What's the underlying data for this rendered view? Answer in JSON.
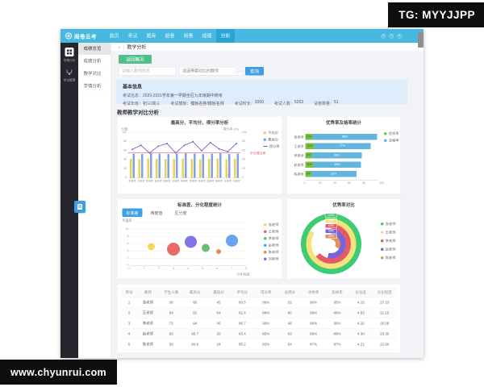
{
  "watermarks": {
    "top_right": "TG: MYYJJPP",
    "bottom_left": "www.chyunrui.com"
  },
  "app": {
    "brand": "阅卷云考",
    "topnav": [
      "首页",
      "考试",
      "题库",
      "组卷",
      "阅卷",
      "成绩",
      "分析"
    ],
    "topnav_active": "分析",
    "sidebar_items": [
      {
        "icon": "grid-icon",
        "label": "学情分析"
      },
      {
        "icon": "trophy-icon",
        "label": "考试管理"
      }
    ],
    "menu_items": [
      "成绩总览",
      "成绩分析",
      "教学对比",
      "学情分析"
    ],
    "menu_active": "成绩总览",
    "breadcrumb": {
      "back": "‹",
      "title": "教学分析"
    },
    "buttons": {
      "back_overview": "返回概况",
      "query": "查询"
    },
    "filters": {
      "teacher_input_placeholder": "请输入教师姓名",
      "compare_select_value": "请选择要对比的教师",
      "clear_icon": "×"
    },
    "info_panel": {
      "title": "基本信息",
      "exam_info_label": "考试信息：",
      "exam_info_value": "2020-2021学年第一学期全区九年级期中统考",
      "fields": [
        {
          "label": "考试年级：",
          "value": "初三/高三"
        },
        {
          "label": "考试模板：",
          "value": "模板名称/模板名称"
        },
        {
          "label": "考试时长：",
          "value": "2000"
        },
        {
          "label": "考试人数：",
          "value": "5263"
        },
        {
          "label": "试卷数量：",
          "value": "51"
        }
      ]
    },
    "section_title": "教师教学对比分析"
  },
  "chart_data": [
    {
      "id": "score-line",
      "type": "bar",
      "title": "最高分、平均分、得分率分析",
      "ylabel_left": "分数",
      "ylabel_right": "得分率 (%)",
      "ylim": [
        0,
        100
      ],
      "yticks": [
        0,
        20,
        40,
        60,
        80,
        100
      ],
      "categories": [
        "张老师",
        "王老师",
        "李老师",
        "赵老师",
        "陈老师",
        "刘老师",
        "杨老师",
        "黄老师",
        "周老师",
        "吴老师",
        "徐老师",
        "孙老师",
        "马老师"
      ],
      "series": [
        {
          "name": "平均分",
          "type": "bar",
          "color": "#f3cf56",
          "values": [
            42,
            41,
            43,
            42,
            41,
            42,
            43,
            42,
            41,
            42,
            43,
            41,
            42
          ]
        },
        {
          "name": "最高分",
          "type": "bar",
          "color": "#7ba3e8",
          "values": [
            54,
            53,
            55,
            54,
            53,
            54,
            55,
            54,
            53,
            54,
            55,
            53,
            54
          ]
        },
        {
          "name": "得分率",
          "type": "line",
          "color": "#5c55c7",
          "values": [
            63,
            72,
            55,
            70,
            76,
            55,
            72,
            80,
            60,
            78,
            64,
            58,
            76
          ]
        }
      ],
      "markline": {
        "label": "平均得分率",
        "value": 55,
        "color": "#e06464"
      }
    },
    {
      "id": "pass-bar",
      "type": "bar",
      "title": "优秀率及格率统计",
      "categories": [
        "张老师",
        "王老师",
        "李老师",
        "赵老师",
        "陈老师"
      ],
      "xlim": [
        0,
        100
      ],
      "xticks": [
        0,
        20,
        40,
        60,
        80
      ],
      "xunit": "(%)",
      "series": [
        {
          "name": "优秀率",
          "color": "#7ac143",
          "values": [
            10,
            12,
            9,
            11,
            8
          ]
        },
        {
          "name": "及格率",
          "color": "#62b5dc",
          "values": [
            88,
            77,
            68,
            65,
            62
          ]
        }
      ]
    },
    {
      "id": "bubble",
      "type": "scatter",
      "title": "标准差、分化程度统计",
      "tabs": [
        "标准差",
        "难度值",
        "区分度"
      ],
      "active_tab": "标准差",
      "xlabel": "分化程度",
      "ylabel": "标准差",
      "xlim": [
        0,
        8
      ],
      "ylim": [
        0,
        12
      ],
      "points": [
        {
          "name": "张老师",
          "x": 1.5,
          "y": 5.2,
          "r": 9,
          "color": "#f5d44c"
        },
        {
          "name": "王老师",
          "x": 3.0,
          "y": 4.6,
          "r": 16,
          "color": "#e95c5c"
        },
        {
          "name": "刘老师",
          "x": 4.2,
          "y": 6.6,
          "r": 15,
          "color": "#7668e6"
        },
        {
          "name": "李老师",
          "x": 5.2,
          "y": 4.9,
          "r": 10,
          "color": "#5cb96a"
        },
        {
          "name": "陈老师",
          "x": 6.1,
          "y": 3.9,
          "r": 6,
          "color": "#e8833c"
        },
        {
          "name": "赵老师",
          "x": 7.0,
          "y": 6.9,
          "r": 15,
          "color": "#5b9cf0"
        }
      ],
      "legend": [
        {
          "name": "张老师",
          "color": "#f5d44c"
        },
        {
          "name": "王老师",
          "color": "#e95c5c"
        },
        {
          "name": "李老师",
          "color": "#5cb96a"
        },
        {
          "name": "赵老师",
          "color": "#5b9cf0"
        },
        {
          "name": "陈老师",
          "color": "#e8833c"
        },
        {
          "name": "刘老师",
          "color": "#7668e6"
        }
      ]
    },
    {
      "id": "rate-donut",
      "type": "pie",
      "title": "优秀率对比",
      "rings": [
        {
          "name": "张老师",
          "value": 100,
          "color": "#3dcb73"
        },
        {
          "name": "王老师",
          "value": 84,
          "color": "#f6e27a"
        },
        {
          "name": "李老师",
          "value": 64,
          "color": "#e45a68"
        },
        {
          "name": "赵老师",
          "value": 54,
          "color": "#7466d9"
        },
        {
          "name": "陈老师",
          "value": 34,
          "color": "#e2905c"
        }
      ]
    },
    {
      "id": "teacher-table",
      "type": "table",
      "headers": [
        "序号",
        "教师",
        "学生人数",
        "最高分",
        "最低分",
        "平均分",
        "得分率",
        "总得分",
        "优秀率",
        "及格率",
        "标准差",
        "分化程度"
      ],
      "rows": [
        [
          "1",
          "张老师",
          "56",
          "95",
          "45",
          "80.5",
          "86%",
          "52",
          "90%",
          "95%",
          "4.15",
          "27.23"
        ],
        [
          "2",
          "王老师",
          "64",
          "91",
          "54",
          "82.4",
          "88%",
          "60",
          "98%",
          "98%",
          "4.63",
          "21.15"
        ],
        [
          "3",
          "李老师",
          "72",
          "94",
          "46",
          "86.7",
          "90%",
          "48",
          "96%",
          "96%",
          "4.32",
          "25.08"
        ],
        [
          "4",
          "赵老师",
          "65",
          "96.7",
          "20",
          "83.4",
          "85%",
          "63",
          "89%",
          "89%",
          "4.30",
          "23.30"
        ],
        [
          "5",
          "陈老师",
          "58",
          "94.9",
          "24",
          "85.2",
          "83%",
          "54",
          "87%",
          "87%",
          "4.21",
          "22.60"
        ]
      ]
    }
  ]
}
